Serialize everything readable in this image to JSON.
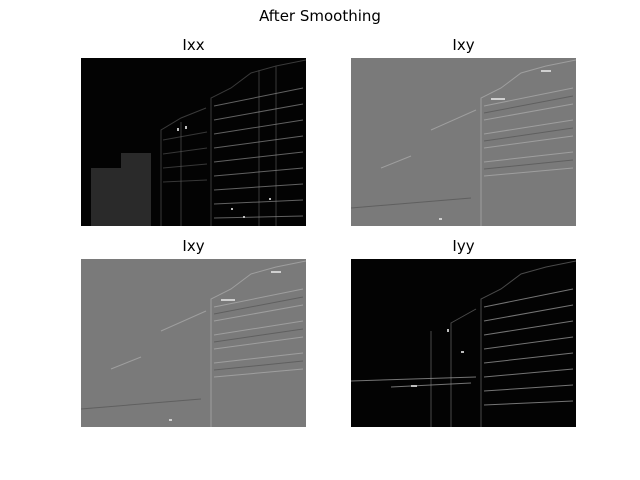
{
  "figure": {
    "title": "After Smoothing"
  },
  "panels": [
    {
      "title": "Ixx",
      "shading": "dark"
    },
    {
      "title": "Ixy",
      "shading": "gray"
    },
    {
      "title": "Ixy",
      "shading": "gray"
    },
    {
      "title": "Iyy",
      "shading": "dark"
    }
  ],
  "colors": {
    "background": "#ffffff",
    "dark_fill": "#050505",
    "gray_fill": "#7a7a7a"
  }
}
